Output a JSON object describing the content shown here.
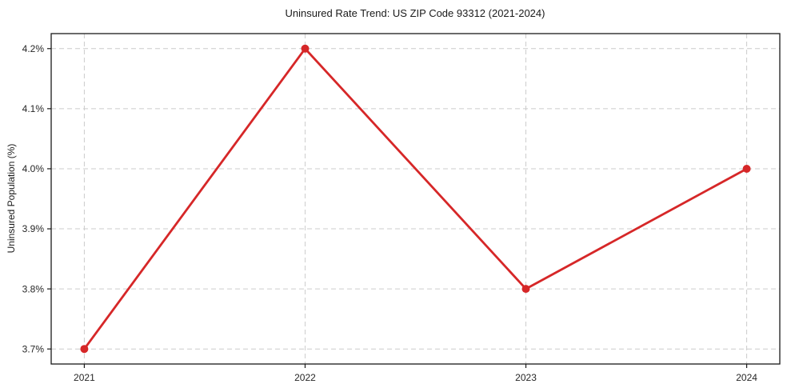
{
  "page": {
    "background": "#ffffff"
  },
  "chart_data": {
    "type": "line",
    "title": "Uninsured Rate Trend: US ZIP Code 93312 (2021-2024)",
    "xlabel": "",
    "ylabel": "Uninsured Population (%)",
    "x": [
      2021,
      2022,
      2023,
      2024
    ],
    "values": [
      3.7,
      4.2,
      3.8,
      4.0
    ],
    "x_tick_labels": [
      "2021",
      "2022",
      "2023",
      "2024"
    ],
    "y_ticks": [
      3.7,
      3.8,
      3.9,
      4.0,
      4.1,
      4.2
    ],
    "y_tick_labels": [
      "3.7%",
      "3.8%",
      "3.9%",
      "4.0%",
      "4.1%",
      "4.2%"
    ],
    "xlim": [
      2020.85,
      2024.15
    ],
    "ylim": [
      3.675,
      4.225
    ],
    "grid": true,
    "grid_style": "dashed",
    "legend_position": "none",
    "line_color": "#d62728",
    "marker_color": "#d62728",
    "marker": "circle",
    "grid_color": "#cccccc",
    "axis_color": "#1a1a1a",
    "text_color": "#1a1a1a"
  }
}
